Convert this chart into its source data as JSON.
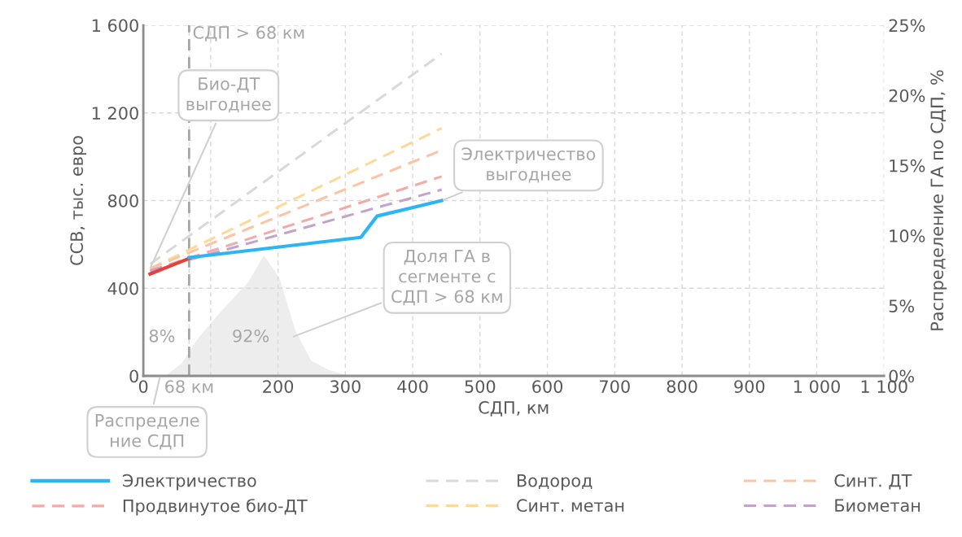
{
  "chart_data": {
    "type": "line",
    "xlabel": "СДП, км",
    "ylabel": "ССВ, тыс. евро",
    "y2label": "Распределение ГА по СДП, %",
    "xlim": [
      0,
      1100
    ],
    "xticks": [
      0,
      {
        "value": 68,
        "label": "68 км"
      },
      {
        "value": 100,
        "label": null
      },
      200,
      300,
      400,
      500,
      600,
      700,
      800,
      900,
      {
        "value": 1000,
        "label": "1 000"
      },
      {
        "value": 1100,
        "label": "1 100"
      }
    ],
    "ylim": [
      0,
      1600
    ],
    "yticks": [
      0,
      400,
      800,
      {
        "value": 1200,
        "label": "1 200"
      },
      {
        "value": 1600,
        "label": "1 600"
      }
    ],
    "y2lim": [
      0,
      25
    ],
    "y2ticks": [
      {
        "value": 0,
        "label": "0%"
      },
      {
        "value": 5,
        "label": "5%"
      },
      {
        "value": 10,
        "label": "10%"
      },
      {
        "value": 15,
        "label": "15%"
      },
      {
        "value": 20,
        "label": "20%"
      },
      {
        "value": 25,
        "label": "25%"
      }
    ],
    "grid": true,
    "legend": "bottom",
    "marker": "none",
    "series": [
      {
        "type": "area",
        "axis": "y2",
        "color": "#ededed",
        "x": [
          0,
          33,
          57,
          80,
          110,
          156,
          179,
          202,
          226,
          249,
          276,
          307
        ],
        "values": [
          0,
          0,
          0.9,
          2.6,
          4.3,
          6.7,
          8.6,
          7.0,
          3.2,
          1.1,
          0.4,
          0
        ]
      },
      {
        "name": "Водород",
        "color": "#d9d9d9",
        "line_style": "dashed",
        "x": [
          10,
          443
        ],
        "values": [
          510,
          1470
        ]
      },
      {
        "name": "Синт. метан",
        "color": "#ffd99a",
        "line_style": "dashed",
        "x": [
          10,
          443
        ],
        "values": [
          490,
          1130
        ]
      },
      {
        "name": "Синт. ДТ",
        "color": "#fcc4a4",
        "line_style": "dashed",
        "x": [
          10,
          443
        ],
        "values": [
          490,
          1030
        ]
      },
      {
        "name": "Продвинутое био-ДТ",
        "color": "#f4aaa8",
        "line_style": "dashed",
        "x": [
          10,
          443
        ],
        "values": [
          480,
          910
        ]
      },
      {
        "name": "Биометан",
        "color": "#c3a3c9",
        "line_style": "dashed",
        "x": [
          10,
          443
        ],
        "values": [
          480,
          850
        ]
      },
      {
        "color": "#e8413c",
        "line_style": "solid",
        "x": [
          10,
          68
        ],
        "values": [
          465,
          536
        ]
      },
      {
        "name": "Электричество",
        "color": "#2cb5f5",
        "line_style": "solid",
        "x": [
          68,
          323,
          347,
          443
        ],
        "values": [
          540,
          632,
          729,
          800
        ]
      }
    ],
    "ref_lines": [
      {
        "axis": "x",
        "value": 68,
        "label": "СДП > 68 км",
        "color": "#a6a6a6",
        "line_style": "dashed"
      }
    ],
    "annotations": [
      {
        "text": "Био-ДТ выгоднее",
        "x": 10,
        "y": 490
      },
      {
        "text": "Электричество выгоднее",
        "x": 443,
        "y": 800
      },
      {
        "text": "Доля ГА в сегменте с СДП > 68 км"
      },
      {
        "text": "8%"
      },
      {
        "text": "92%"
      },
      {
        "text": "Распределение СДП",
        "x": 25,
        "y": 0
      }
    ]
  }
}
